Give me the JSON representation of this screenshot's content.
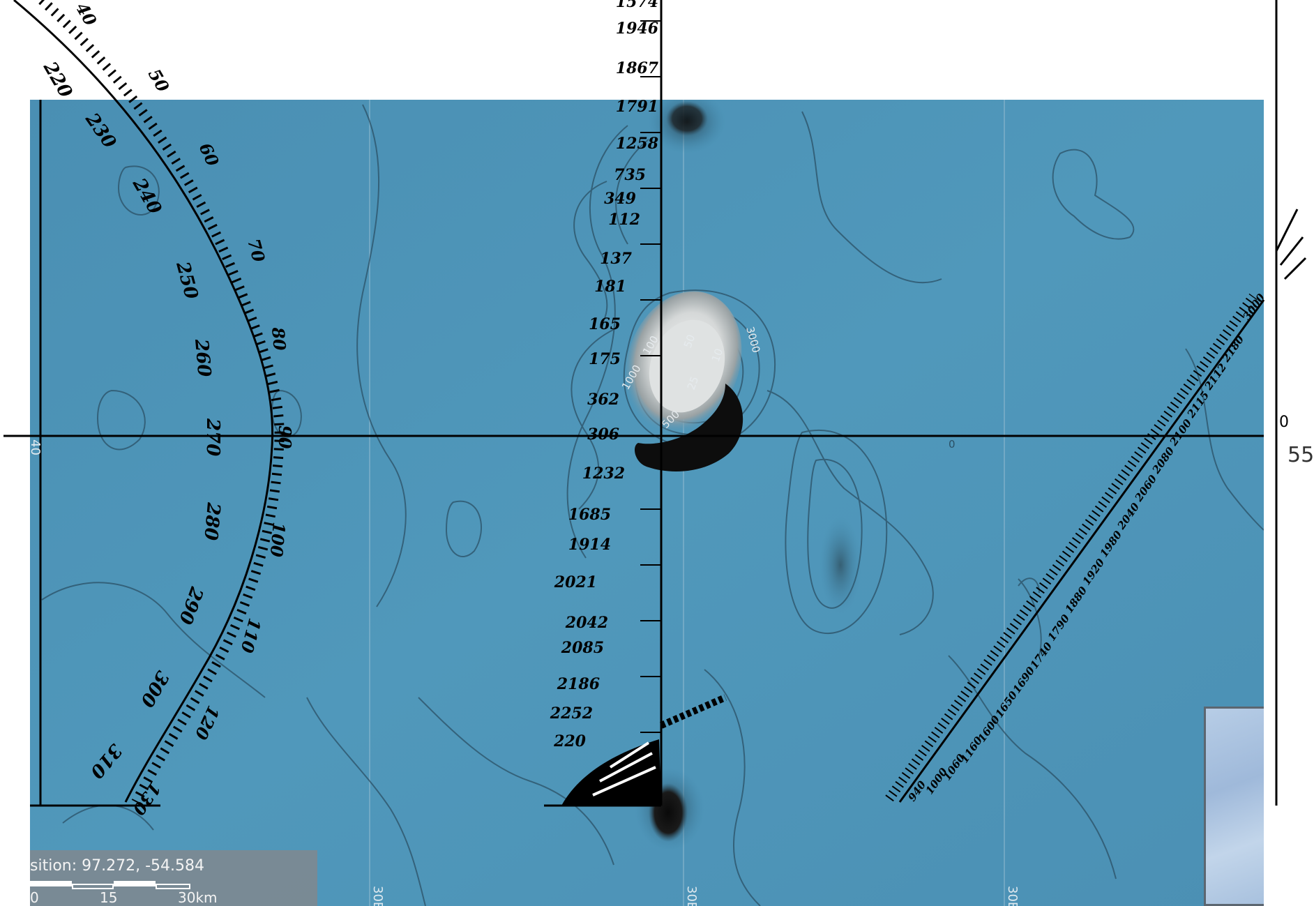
{
  "map": {
    "status": {
      "position_label": "sition: 97.272, -54.584"
    },
    "scale_bar": {
      "labels": [
        "0",
        "15",
        "30km"
      ]
    },
    "grid_labels": {
      "bottom_1": "30E",
      "bottom_2": "30E",
      "bottom_3": "30E",
      "left_edge": "40"
    },
    "contour_labels": [
      "3000",
      "1000",
      "100",
      "50",
      "25",
      "10",
      "500",
      "0"
    ],
    "right_edge": {
      "label": "55",
      "partial": "0"
    },
    "compass_rose": {
      "outer_labels": [
        "220",
        "230",
        "240",
        "250",
        "260",
        "270",
        "280",
        "290",
        "300",
        "310"
      ],
      "inner_labels": [
        "40",
        "50",
        "60",
        "70",
        "80",
        "90",
        "100",
        "110",
        "120",
        "130"
      ]
    },
    "soundings_vertical": [
      "1574",
      "1946",
      "1867",
      "1791",
      "1258",
      "735",
      "349",
      "112",
      "137",
      "181",
      "165",
      "175",
      "362",
      "306",
      "1232",
      "1685",
      "1914",
      "2021",
      "2042",
      "2085",
      "2186",
      "2252",
      "220"
    ],
    "soundings_diagonal": [
      "3000",
      "2180",
      "2112",
      "2115",
      "2100",
      "2080",
      "2060",
      "2040",
      "1980",
      "1920",
      "1880",
      "1790",
      "1740",
      "1690",
      "1650",
      "1600",
      "1160",
      "1060",
      "1000",
      "940"
    ],
    "colors": {
      "sea": "#4e93b6",
      "sea_dark": "#3b7da0",
      "contour": "#2b5065",
      "land": "#d9dcdc",
      "shadow": "#0d0d0d",
      "ink": "#000000"
    },
    "icons": [
      "compass-rose-icon",
      "scale-bar-icon"
    ]
  }
}
